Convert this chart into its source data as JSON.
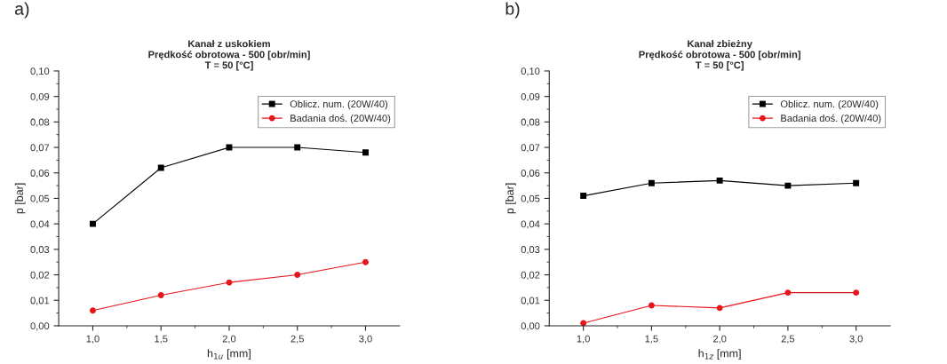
{
  "chart_data": [
    {
      "type": "line",
      "title": "Kanał z uskokiem\nPrędkość obrotowa - 500 [obr/min]\nT = 50 [°C]",
      "xlabel": "h$_{1u}$ [mm]",
      "ylabel": "p [bar]",
      "annotations": [
        "a)"
      ],
      "x": [
        1.0,
        1.5,
        2.0,
        2.5,
        3.0
      ],
      "series": [
        {
          "name": "Oblicz. num. (20W/40)",
          "color": "#000000",
          "marker": "square",
          "values": [
            0.04,
            0.062,
            0.07,
            0.07,
            0.068
          ]
        },
        {
          "name": "Badania doś. (20W/40)",
          "color": "#e8141c",
          "marker": "circle",
          "values": [
            0.006,
            0.012,
            0.017,
            0.02,
            0.025
          ]
        }
      ],
      "xlim": [
        0.75,
        3.25
      ],
      "ylim": [
        0.0,
        0.1
      ],
      "xticks": [
        {
          "value": 1.0,
          "label": "1,0"
        },
        {
          "value": 1.5,
          "label": "1,5"
        },
        {
          "value": 2.0,
          "label": "2,0"
        },
        {
          "value": 2.5,
          "label": "2,5"
        },
        {
          "value": 3.0,
          "label": "3,0"
        }
      ],
      "yticks": [
        {
          "value": 0.0,
          "label": "0,00"
        },
        {
          "value": 0.01,
          "label": "0,01"
        },
        {
          "value": 0.02,
          "label": "0,02"
        },
        {
          "value": 0.03,
          "label": "0,03"
        },
        {
          "value": 0.04,
          "label": "0,04"
        },
        {
          "value": 0.05,
          "label": "0,05"
        },
        {
          "value": 0.06,
          "label": "0,06"
        },
        {
          "value": 0.07,
          "label": "0,07"
        },
        {
          "value": 0.08,
          "label": "0,08"
        },
        {
          "value": 0.09,
          "label": "0,09"
        },
        {
          "value": 0.1,
          "label": "0,10"
        }
      ],
      "grid": false,
      "legend": "top right"
    },
    {
      "type": "line",
      "title": "Kanał zbieżny\nPrędkość obrotowa - 500 [obr/min]\nT = 50 [°C]",
      "xlabel": "h$_{1z}$ [mm]",
      "ylabel": "p [bar]",
      "annotations": [
        "b)"
      ],
      "x": [
        1.0,
        1.5,
        2.0,
        2.5,
        3.0
      ],
      "series": [
        {
          "name": "Oblicz. num. (20W/40)",
          "color": "#000000",
          "marker": "square",
          "values": [
            0.051,
            0.056,
            0.057,
            0.055,
            0.056
          ]
        },
        {
          "name": "Badania doś. (20W/40)",
          "color": "#e8141c",
          "marker": "circle",
          "values": [
            0.001,
            0.008,
            0.007,
            0.013,
            0.013
          ]
        }
      ],
      "xlim": [
        0.75,
        3.25
      ],
      "ylim": [
        0.0,
        0.1
      ],
      "xticks": [
        {
          "value": 1.0,
          "label": "1,0"
        },
        {
          "value": 1.5,
          "label": "1,5"
        },
        {
          "value": 2.0,
          "label": "2,0"
        },
        {
          "value": 2.5,
          "label": "2,5"
        },
        {
          "value": 3.0,
          "label": "3,0"
        }
      ],
      "yticks": [
        {
          "value": 0.0,
          "label": "0,00"
        },
        {
          "value": 0.01,
          "label": "0,01"
        },
        {
          "value": 0.02,
          "label": "0,02"
        },
        {
          "value": 0.03,
          "label": "0,03"
        },
        {
          "value": 0.04,
          "label": "0,04"
        },
        {
          "value": 0.05,
          "label": "0,05"
        },
        {
          "value": 0.06,
          "label": "0,06"
        },
        {
          "value": 0.07,
          "label": "0,07"
        },
        {
          "value": 0.08,
          "label": "0,08"
        },
        {
          "value": 0.09,
          "label": "0,09"
        },
        {
          "value": 0.1,
          "label": "0,10"
        }
      ],
      "grid": false,
      "legend": "top right"
    }
  ]
}
